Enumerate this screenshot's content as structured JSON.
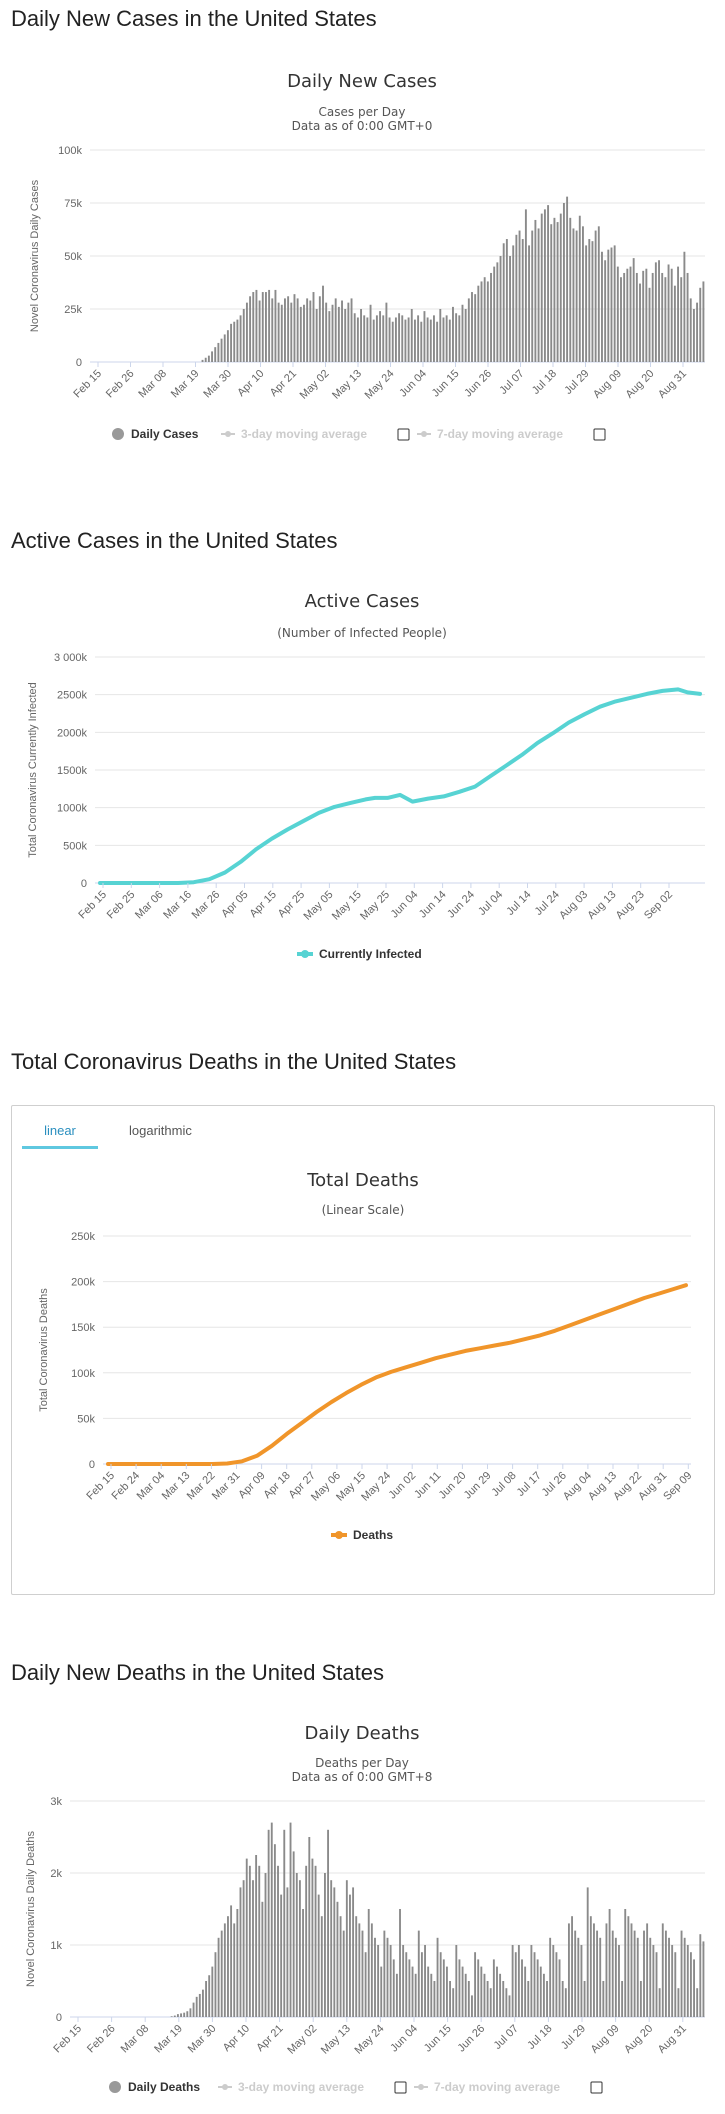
{
  "sections": {
    "s1": "Daily New Cases in the United States",
    "s2": "Active Cases in the United States",
    "s3": "Total Coronavirus Deaths in the United States",
    "s4": "Daily New Deaths in the United States"
  },
  "tabs": {
    "linear": "linear",
    "log": "logarithmic"
  },
  "checkbox_legend": {
    "three_day": "3-day moving average",
    "seven_day": "7-day moving average"
  },
  "colors": {
    "bar": "#8a8a8a",
    "active": "#57d3d3",
    "deaths": "#f0952a",
    "grid": "#e6e6e6",
    "tab_accent": "#5fc8e0"
  },
  "chart_data": [
    {
      "id": "daily-cases",
      "type": "bar",
      "title": "Daily New Cases",
      "subtitle": [
        "Cases per Day",
        "Data as of 0:00 GMT+0"
      ],
      "ylabel": "Novel Coronavirus Daily Cases",
      "ylim": [
        0,
        100000
      ],
      "yticks": [
        0,
        25000,
        50000,
        75000,
        100000
      ],
      "ytick_labels": [
        "0",
        "25k",
        "50k",
        "75k",
        "100k"
      ],
      "xtick_labels": [
        "Feb 15",
        "Feb 26",
        "Mar 08",
        "Mar 19",
        "Mar 30",
        "Apr 10",
        "Apr 21",
        "May 02",
        "May 13",
        "May 24",
        "Jun 04",
        "Jun 15",
        "Jun 26",
        "Jul 07",
        "Jul 18",
        "Jul 29",
        "Aug 09",
        "Aug 20",
        "Aug 31"
      ],
      "legend": "Daily Cases",
      "series": [
        {
          "name": "Daily Cases",
          "values": [
            0,
            0,
            0,
            0,
            0,
            0,
            0,
            0,
            0,
            0,
            0,
            0,
            0,
            0,
            0,
            0,
            0,
            0,
            0,
            0,
            0,
            0,
            0,
            0,
            0,
            0,
            0,
            0,
            0,
            0,
            0,
            0,
            0,
            0,
            0,
            1000,
            2000,
            3000,
            5000,
            7000,
            9000,
            11000,
            13000,
            15000,
            18000,
            19000,
            20000,
            22000,
            25000,
            28000,
            31000,
            33000,
            34000,
            29000,
            33000,
            33000,
            34000,
            30000,
            34000,
            28000,
            27000,
            30000,
            31000,
            28000,
            32000,
            30000,
            26000,
            27000,
            30000,
            29000,
            33000,
            25000,
            31000,
            36000,
            28000,
            24000,
            27000,
            30000,
            26000,
            29000,
            25000,
            28000,
            30000,
            23000,
            21000,
            25000,
            22000,
            21000,
            27000,
            20000,
            22000,
            24000,
            22000,
            28000,
            21000,
            19000,
            21000,
            23000,
            22000,
            20000,
            21000,
            25000,
            20000,
            22000,
            19000,
            24000,
            21000,
            20000,
            22000,
            19000,
            25000,
            21000,
            22000,
            20000,
            26000,
            23000,
            22000,
            27000,
            25000,
            30000,
            33000,
            32000,
            36000,
            38000,
            40000,
            38000,
            42000,
            45000,
            47000,
            50000,
            56000,
            58000,
            50000,
            55000,
            60000,
            62000,
            58000,
            72000,
            55000,
            62000,
            67000,
            63000,
            70000,
            72000,
            74000,
            65000,
            68000,
            66000,
            70000,
            75000,
            78000,
            68000,
            63000,
            62000,
            69000,
            64000,
            55000,
            58000,
            57000,
            62000,
            64000,
            52000,
            48000,
            53000,
            54000,
            55000,
            45000,
            40000,
            42000,
            44000,
            45000,
            49000,
            42000,
            37000,
            43000,
            44000,
            35000,
            42000,
            47000,
            48000,
            42000,
            40000,
            46000,
            44000,
            36000,
            45000,
            40000,
            52000,
            42000,
            30000,
            25000,
            28000,
            35000,
            38000
          ]
        }
      ]
    },
    {
      "id": "active-cases",
      "type": "line",
      "title": "Active Cases",
      "subtitle": [
        "(Number of Infected People)"
      ],
      "ylabel": "Total Coronavirus Currently Infected",
      "ylim": [
        0,
        3000000
      ],
      "yticks": [
        0,
        500000,
        1000000,
        1500000,
        2000000,
        2500000,
        3000000
      ],
      "ytick_labels": [
        "0",
        "500k",
        "1000k",
        "1500k",
        "2000k",
        "2500k",
        "3 000k"
      ],
      "xtick_labels": [
        "Feb 15",
        "Feb 25",
        "Mar 06",
        "Mar 16",
        "Mar 26",
        "Apr 05",
        "Apr 15",
        "Apr 25",
        "May 05",
        "May 15",
        "May 25",
        "Jun 04",
        "Jun 14",
        "Jun 24",
        "Jul 04",
        "Jul 14",
        "Jul 24",
        "Aug 03",
        "Aug 13",
        "Aug 23",
        "Sep 02"
      ],
      "legend": "Currently Infected",
      "series": [
        {
          "name": "Currently Infected",
          "points": [
            [
              0,
              0
            ],
            [
              25,
              0
            ],
            [
              30,
              10000
            ],
            [
              35,
              50000
            ],
            [
              40,
              140000
            ],
            [
              45,
              280000
            ],
            [
              50,
              450000
            ],
            [
              55,
              590000
            ],
            [
              60,
              710000
            ],
            [
              65,
              820000
            ],
            [
              70,
              930000
            ],
            [
              75,
              1010000
            ],
            [
              80,
              1060000
            ],
            [
              85,
              1110000
            ],
            [
              88,
              1130000
            ],
            [
              92,
              1130000
            ],
            [
              96,
              1170000
            ],
            [
              100,
              1080000
            ],
            [
              105,
              1120000
            ],
            [
              110,
              1150000
            ],
            [
              115,
              1210000
            ],
            [
              120,
              1280000
            ],
            [
              125,
              1420000
            ],
            [
              130,
              1560000
            ],
            [
              135,
              1700000
            ],
            [
              140,
              1860000
            ],
            [
              145,
              1990000
            ],
            [
              150,
              2130000
            ],
            [
              155,
              2240000
            ],
            [
              160,
              2340000
            ],
            [
              165,
              2410000
            ],
            [
              170,
              2460000
            ],
            [
              175,
              2510000
            ],
            [
              180,
              2550000
            ],
            [
              185,
              2570000
            ],
            [
              188,
              2530000
            ],
            [
              192,
              2510000
            ]
          ]
        }
      ]
    },
    {
      "id": "total-deaths",
      "type": "line",
      "title": "Total Deaths",
      "subtitle": [
        "(Linear Scale)"
      ],
      "ylabel": "Total Coronavirus Deaths",
      "ylim": [
        0,
        250000
      ],
      "yticks": [
        0,
        50000,
        100000,
        150000,
        200000,
        250000
      ],
      "ytick_labels": [
        "0",
        "50k",
        "100k",
        "150k",
        "200k",
        "250k"
      ],
      "xtick_labels": [
        "Feb 15",
        "Feb 24",
        "Mar 04",
        "Mar 13",
        "Mar 22",
        "Mar 31",
        "Apr 09",
        "Apr 18",
        "Apr 27",
        "May 06",
        "May 15",
        "May 24",
        "Jun 02",
        "Jun 11",
        "Jun 20",
        "Jun 29",
        "Jul 08",
        "Jul 17",
        "Jul 26",
        "Aug 04",
        "Aug 13",
        "Aug 22",
        "Aug 31",
        "Sep 09"
      ],
      "legend": "Deaths",
      "series": [
        {
          "name": "Deaths",
          "points": [
            [
              0,
              0
            ],
            [
              35,
              0
            ],
            [
              40,
              500
            ],
            [
              45,
              3000
            ],
            [
              50,
              9000
            ],
            [
              55,
              20000
            ],
            [
              60,
              33000
            ],
            [
              65,
              45000
            ],
            [
              70,
              57000
            ],
            [
              75,
              68000
            ],
            [
              80,
              78000
            ],
            [
              85,
              87000
            ],
            [
              90,
              95000
            ],
            [
              95,
              101000
            ],
            [
              100,
              106000
            ],
            [
              105,
              111000
            ],
            [
              110,
              116000
            ],
            [
              115,
              120000
            ],
            [
              120,
              124000
            ],
            [
              125,
              127000
            ],
            [
              130,
              130000
            ],
            [
              135,
              133000
            ],
            [
              140,
              137000
            ],
            [
              145,
              141000
            ],
            [
              150,
              146000
            ],
            [
              155,
              152000
            ],
            [
              160,
              158000
            ],
            [
              165,
              164000
            ],
            [
              170,
              170000
            ],
            [
              175,
              176000
            ],
            [
              180,
              182000
            ],
            [
              185,
              187000
            ],
            [
              190,
              192000
            ],
            [
              194,
              196000
            ]
          ]
        }
      ]
    },
    {
      "id": "daily-deaths",
      "type": "bar",
      "title": "Daily Deaths",
      "subtitle": [
        "Deaths per Day",
        "Data as of 0:00 GMT+8"
      ],
      "ylabel": "Novel Coronavirus Daily Deaths",
      "ylim": [
        0,
        3000
      ],
      "yticks": [
        0,
        1000,
        2000,
        3000
      ],
      "ytick_labels": [
        "0",
        "1k",
        "2k",
        "3k"
      ],
      "xtick_labels": [
        "Feb 15",
        "Feb 26",
        "Mar 08",
        "Mar 19",
        "Mar 30",
        "Apr 10",
        "Apr 21",
        "May 02",
        "May 13",
        "May 24",
        "Jun 04",
        "Jun 15",
        "Jun 26",
        "Jul 07",
        "Jul 18",
        "Jul 29",
        "Aug 09",
        "Aug 20",
        "Aug 31"
      ],
      "legend": "Daily Deaths",
      "series": [
        {
          "name": "Daily Deaths",
          "values": [
            0,
            0,
            0,
            0,
            0,
            0,
            0,
            0,
            0,
            0,
            0,
            0,
            0,
            0,
            0,
            0,
            0,
            0,
            0,
            0,
            0,
            0,
            0,
            0,
            0,
            0,
            0,
            0,
            0,
            0,
            0,
            0,
            10,
            20,
            40,
            50,
            60,
            80,
            120,
            200,
            280,
            320,
            380,
            500,
            580,
            700,
            900,
            1100,
            1200,
            1300,
            1400,
            1550,
            1300,
            1500,
            1800,
            1900,
            2200,
            2100,
            1900,
            2250,
            2100,
            1600,
            2000,
            2600,
            2700,
            2400,
            2100,
            1700,
            2600,
            1800,
            2700,
            2300,
            2000,
            1900,
            1500,
            2100,
            2500,
            2200,
            2100,
            1700,
            1400,
            2000,
            2600,
            1900,
            1800,
            1600,
            1400,
            1200,
            1900,
            1700,
            1800,
            1400,
            1300,
            1200,
            900,
            1500,
            1300,
            1100,
            1000,
            700,
            1200,
            1100,
            1000,
            800,
            600,
            1500,
            1000,
            900,
            800,
            700,
            600,
            1200,
            900,
            1000,
            700,
            600,
            500,
            1100,
            900,
            800,
            700,
            500,
            400,
            1000,
            800,
            700,
            600,
            500,
            300,
            900,
            800,
            700,
            600,
            500,
            400,
            800,
            700,
            600,
            500,
            400,
            300,
            1000,
            900,
            1000,
            800,
            700,
            500,
            1000,
            900,
            800,
            700,
            600,
            500,
            1100,
            1000,
            900,
            800,
            500,
            400,
            1300,
            1400,
            1200,
            1100,
            1000,
            500,
            1800,
            1400,
            1300,
            1200,
            1100,
            500,
            1300,
            1500,
            1200,
            1100,
            1000,
            500,
            1500,
            1400,
            1300,
            1200,
            1100,
            500,
            1200,
            1300,
            1100,
            1000,
            900,
            400,
            1300,
            1200,
            1100,
            1000,
            900,
            400,
            1200,
            1100,
            1000,
            900,
            800,
            400,
            1150,
            1050
          ]
        }
      ]
    }
  ]
}
